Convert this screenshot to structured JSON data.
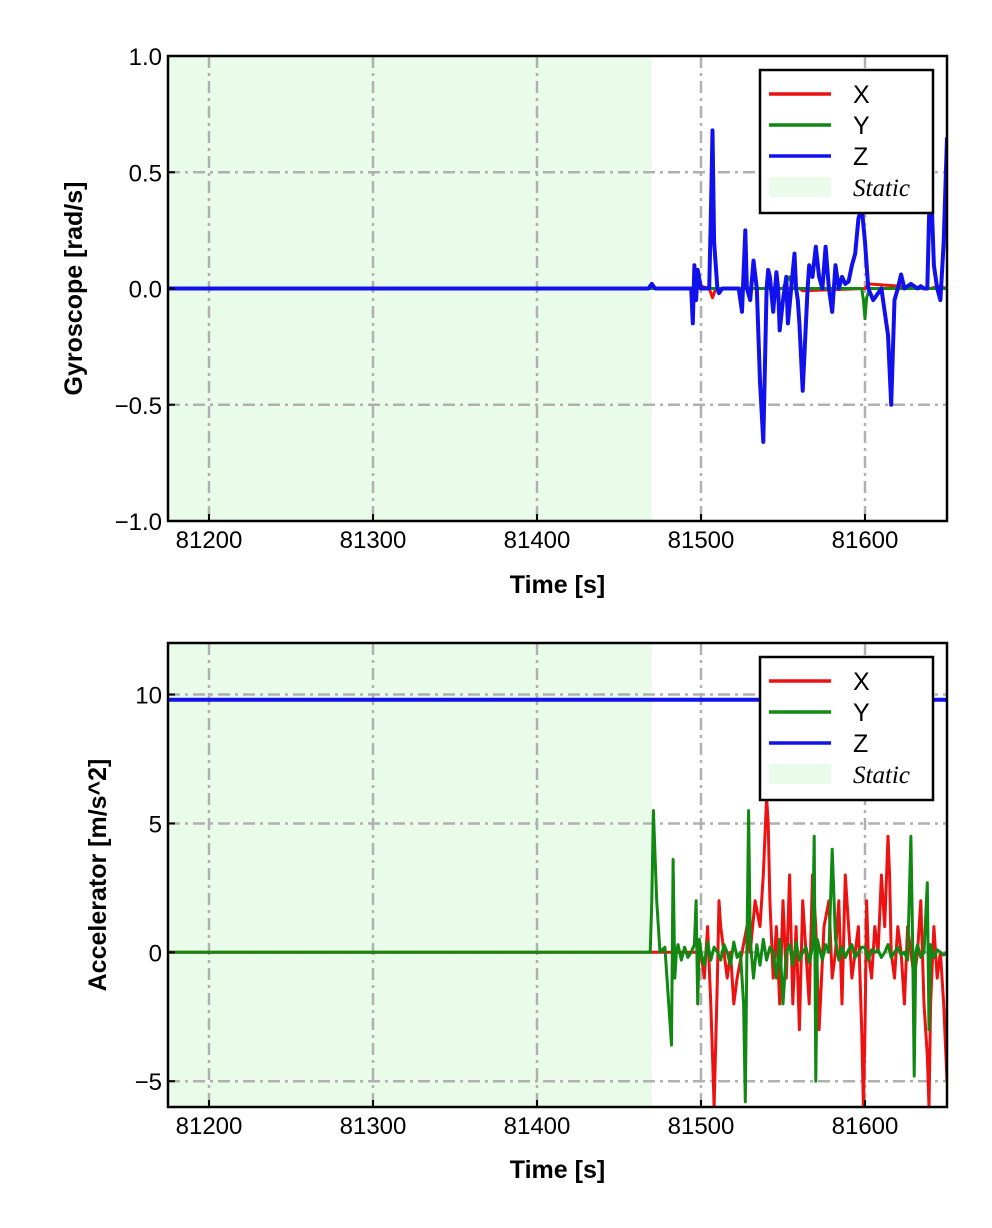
{
  "chart_data": [
    {
      "type": "line",
      "xlabel": "Time [s]",
      "ylabel": "Gyroscope [rad/s]",
      "xlim": [
        81175,
        81650
      ],
      "ylim": [
        -1.0,
        1.0
      ],
      "xticks": [
        81200,
        81300,
        81400,
        81500,
        81600
      ],
      "yticks": [
        -1.0,
        -0.5,
        0.0,
        0.5,
        1.0
      ],
      "ytick_labels": [
        "−1.0",
        "−0.5",
        "0.0",
        "0.5",
        "1.0"
      ],
      "grid": true,
      "legend_position": "top-right",
      "static_region": {
        "label": "Static",
        "x": [
          81175,
          81470
        ],
        "color": "#e9fce9"
      },
      "series": [
        {
          "name": "X",
          "color": "#ee1111",
          "width": 3,
          "x": [
            81175,
            81470,
            81495,
            81500,
            81505,
            81507,
            81509,
            81512,
            81540,
            81541,
            81543,
            81560,
            81562,
            81600,
            81602,
            81640,
            81645,
            81650
          ],
          "y": [
            0,
            0,
            0,
            0.01,
            0,
            -0.04,
            0,
            0,
            0,
            0.02,
            0,
            0,
            -0.01,
            0,
            0.02,
            0,
            0.01,
            0
          ]
        },
        {
          "name": "Y",
          "color": "#118811",
          "width": 3,
          "x": [
            81175,
            81470,
            81550,
            81552,
            81554,
            81556,
            81560,
            81598,
            81599,
            81600,
            81601,
            81603,
            81650
          ],
          "y": [
            0,
            0,
            0,
            0.03,
            0.05,
            0,
            0,
            0,
            -0.05,
            -0.13,
            -0.04,
            0,
            0
          ]
        },
        {
          "name": "Z",
          "color": "#1111ee",
          "width": 4,
          "x": [
            81175,
            81468,
            81470,
            81472,
            81494,
            81495,
            81496,
            81497,
            81498,
            81500,
            81505,
            81506,
            81507,
            81508,
            81510,
            81511,
            81513,
            81523,
            81525,
            81527,
            81528,
            81530,
            81532,
            81534,
            81536,
            81538,
            81540,
            81541,
            81542,
            81544,
            81546,
            81547,
            81548,
            81550,
            81552,
            81553,
            81555,
            81557,
            81558,
            81559,
            81560,
            81562,
            81565,
            81566,
            81568,
            81570,
            81572,
            81574,
            81576,
            81578,
            81580,
            81582,
            81584,
            81586,
            81588,
            81590,
            81592,
            81594,
            81596,
            81598,
            81600,
            81602,
            81605,
            81610,
            81614,
            81616,
            81618,
            81620,
            81622,
            81624,
            81628,
            81632,
            81634,
            81636,
            81638,
            81639,
            81640,
            81642,
            81644,
            81646,
            81648,
            81650
          ],
          "y": [
            0,
            0,
            0.02,
            0,
            0,
            -0.15,
            0.1,
            -0.05,
            0.08,
            0,
            0,
            0.3,
            0.68,
            0.2,
            0,
            -0.02,
            0,
            0,
            -0.1,
            0.25,
            0,
            -0.05,
            0.12,
            0,
            -0.4,
            -0.66,
            0,
            0.08,
            0.05,
            -0.1,
            0.07,
            0,
            -0.18,
            -0.05,
            0.05,
            -0.15,
            0,
            0.15,
            0,
            -0.05,
            -0.15,
            -0.44,
            0,
            0.1,
            0.05,
            0.18,
            0.05,
            0,
            0.18,
            0,
            -0.1,
            0.1,
            0,
            0.05,
            0.02,
            0.03,
            0.1,
            0.15,
            0.3,
            0.35,
            0.2,
            0,
            -0.05,
            0,
            -0.2,
            -0.5,
            -0.05,
            0,
            0.06,
            0,
            0.02,
            0,
            0.01,
            0,
            0,
            0.3,
            0.5,
            0.1,
            0,
            -0.05,
            0.2,
            0.65
          ]
        }
      ]
    },
    {
      "type": "line",
      "xlabel": "Time [s]",
      "ylabel": "Accelerator [m/s^2]",
      "xlim": [
        81175,
        81650
      ],
      "ylim": [
        -6,
        12
      ],
      "xticks": [
        81200,
        81300,
        81400,
        81500,
        81600
      ],
      "yticks": [
        -5,
        0,
        5,
        10
      ],
      "ytick_labels": [
        "−5",
        "0",
        "5",
        "10"
      ],
      "grid": true,
      "legend_position": "top-right",
      "static_region": {
        "label": "Static",
        "x": [
          81175,
          81470
        ],
        "color": "#e9fce9"
      },
      "series": [
        {
          "name": "X",
          "color": "#ee1111",
          "width": 3,
          "x": [
            81175,
            81470,
            81480,
            81490,
            81500,
            81502,
            81504,
            81506,
            81507,
            81508,
            81510,
            81511,
            81512,
            81514,
            81516,
            81518,
            81520,
            81522,
            81525,
            81528,
            81530,
            81533,
            81536,
            81538,
            81540,
            81541,
            81542,
            81544,
            81546,
            81548,
            81550,
            81552,
            81554,
            81556,
            81558,
            81560,
            81562,
            81564,
            81566,
            81568,
            81570,
            81572,
            81575,
            81578,
            81580,
            81582,
            81584,
            81586,
            81588,
            81590,
            81592,
            81594,
            81596,
            81598,
            81599,
            81600,
            81601,
            81602,
            81604,
            81606,
            81608,
            81610,
            81612,
            81614,
            81615,
            81616,
            81618,
            81620,
            81622,
            81624,
            81626,
            81628,
            81630,
            81632,
            81634,
            81636,
            81638,
            81639,
            81640,
            81642,
            81644,
            81646,
            81648,
            81650
          ],
          "y": [
            0,
            0,
            0,
            0,
            0,
            -1,
            1,
            -2,
            -4,
            -6,
            -1,
            2,
            1,
            0,
            -1,
            0,
            -2,
            -1,
            0,
            1,
            0,
            2,
            1,
            3,
            6,
            5,
            2,
            -1,
            1,
            -2,
            2,
            -1,
            3,
            -2,
            1,
            -3,
            2,
            0,
            -2,
            3,
            1,
            -3,
            1,
            2,
            -1,
            0,
            2,
            -2,
            3,
            1,
            -1,
            0,
            1,
            -3,
            -6,
            -3,
            2,
            0,
            -1,
            1,
            0,
            3,
            1,
            4.5,
            3,
            0,
            -1,
            1,
            0,
            -2,
            1,
            0,
            -1,
            0,
            2,
            -2,
            -4,
            -6,
            -2,
            1,
            -1,
            0,
            -2,
            -5
          ]
        },
        {
          "name": "Y",
          "color": "#118811",
          "width": 3,
          "x": [
            81175,
            81469,
            81470,
            81471,
            81473,
            81475,
            81478,
            81482,
            81483,
            81484,
            81485,
            81486,
            81488,
            81490,
            81492,
            81494,
            81496,
            81497,
            81498,
            81499,
            81500,
            81502,
            81504,
            81506,
            81508,
            81510,
            81512,
            81514,
            81516,
            81518,
            81520,
            81522,
            81524,
            81526,
            81527,
            81528,
            81529,
            81530,
            81532,
            81534,
            81536,
            81538,
            81540,
            81542,
            81544,
            81546,
            81548,
            81550,
            81552,
            81554,
            81556,
            81558,
            81560,
            81562,
            81564,
            81566,
            81568,
            81569,
            81570,
            81571,
            81572,
            81574,
            81576,
            81578,
            81580,
            81582,
            81584,
            81586,
            81588,
            81590,
            81592,
            81594,
            81596,
            81598,
            81600,
            81602,
            81604,
            81606,
            81608,
            81610,
            81612,
            81614,
            81616,
            81618,
            81620,
            81622,
            81624,
            81626,
            81628,
            81629,
            81630,
            81631,
            81632,
            81634,
            81636,
            81638,
            81639,
            81640,
            81641,
            81642,
            81644,
            81646,
            81648,
            81650
          ],
          "y": [
            0,
            0,
            2,
            5.5,
            2,
            0,
            0.2,
            -3.6,
            3.6,
            -1,
            0,
            0.3,
            -0.3,
            0.2,
            -0.2,
            0,
            0.3,
            2,
            -2,
            0.5,
            0,
            -0.5,
            0.4,
            -0.3,
            0.2,
            0,
            -0.3,
            0.3,
            0,
            -0.5,
            0.4,
            -0.2,
            0,
            -2,
            -5.8,
            0,
            5.5,
            0.5,
            -1,
            0.3,
            -0.5,
            0.5,
            -0.3,
            0.2,
            0,
            -1,
            0.5,
            -2,
            0,
            0.3,
            -0.5,
            0.4,
            -0.3,
            0,
            0.2,
            -0.4,
            0.2,
            4.5,
            -5,
            0.5,
            0.2,
            -0.3,
            0.3,
            0,
            4,
            0.5,
            -0.3,
            0.2,
            -0.2,
            0.1,
            0.3,
            -0.2,
            0,
            0.2,
            0.2,
            -0.3,
            0.1,
            0,
            0.1,
            -0.2,
            0,
            0.3,
            -0.2,
            0,
            0.2,
            -0.1,
            0,
            -0.3,
            4.5,
            0.5,
            -4.8,
            0,
            0.3,
            -0.2,
            0,
            2.7,
            -3,
            0.3,
            0,
            -0.2,
            0.1,
            0,
            -0.1,
            0
          ]
        },
        {
          "name": "Z",
          "color": "#1111ee",
          "width": 4,
          "x": [
            81175,
            81650
          ],
          "y": [
            9.8,
            9.8
          ]
        }
      ]
    }
  ]
}
